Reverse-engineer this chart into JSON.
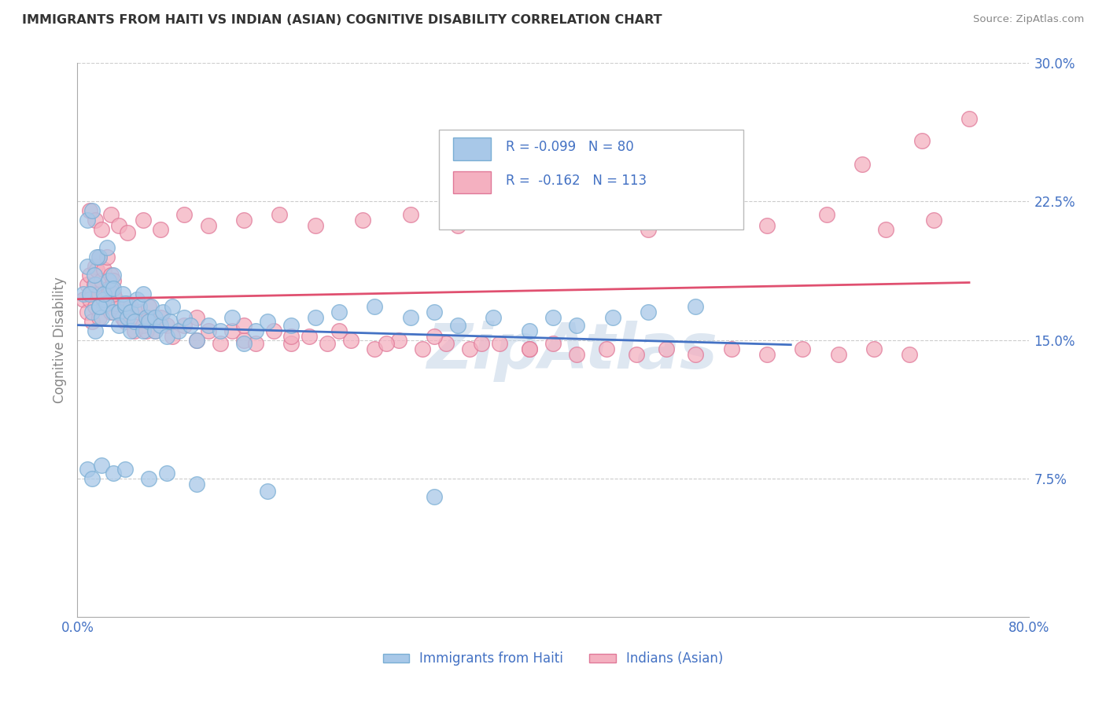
{
  "title": "IMMIGRANTS FROM HAITI VS INDIAN (ASIAN) COGNITIVE DISABILITY CORRELATION CHART",
  "source": "Source: ZipAtlas.com",
  "ylabel": "Cognitive Disability",
  "x_min": 0.0,
  "x_max": 0.8,
  "y_min": 0.0,
  "y_max": 0.3,
  "x_ticks": [
    0.0,
    0.1,
    0.2,
    0.3,
    0.4,
    0.5,
    0.6,
    0.7,
    0.8
  ],
  "y_ticks": [
    0.0,
    0.075,
    0.15,
    0.225,
    0.3
  ],
  "haiti_color": "#a8c8e8",
  "haiti_edge_color": "#7aaed4",
  "india_color": "#f4b0c0",
  "india_edge_color": "#e07898",
  "haiti_trend_color": "#4472c4",
  "india_trend_color": "#e05070",
  "legend_text_color": "#4472c4",
  "background_color": "#ffffff",
  "grid_color": "#cccccc",
  "title_color": "#333333",
  "axis_label_color": "#4472c4",
  "watermark_color": "#c8d8e8",
  "haiti_scatter_x": [
    0.005,
    0.008,
    0.012,
    0.015,
    0.018,
    0.008,
    0.012,
    0.015,
    0.018,
    0.022,
    0.01,
    0.014,
    0.016,
    0.02,
    0.024,
    0.028,
    0.018,
    0.022,
    0.026,
    0.03,
    0.025,
    0.03,
    0.035,
    0.03,
    0.035,
    0.04,
    0.038,
    0.042,
    0.04,
    0.045,
    0.045,
    0.05,
    0.048,
    0.052,
    0.055,
    0.058,
    0.055,
    0.06,
    0.062,
    0.065,
    0.065,
    0.07,
    0.072,
    0.075,
    0.078,
    0.08,
    0.085,
    0.09,
    0.095,
    0.1,
    0.11,
    0.12,
    0.13,
    0.14,
    0.15,
    0.16,
    0.18,
    0.2,
    0.22,
    0.25,
    0.28,
    0.3,
    0.32,
    0.35,
    0.38,
    0.4,
    0.42,
    0.45,
    0.48,
    0.52,
    0.008,
    0.012,
    0.02,
    0.03,
    0.04,
    0.06,
    0.075,
    0.1,
    0.16,
    0.3
  ],
  "haiti_scatter_y": [
    0.175,
    0.19,
    0.165,
    0.18,
    0.195,
    0.215,
    0.22,
    0.155,
    0.168,
    0.172,
    0.175,
    0.185,
    0.195,
    0.162,
    0.17,
    0.178,
    0.168,
    0.175,
    0.182,
    0.165,
    0.2,
    0.185,
    0.165,
    0.178,
    0.158,
    0.168,
    0.175,
    0.162,
    0.17,
    0.155,
    0.165,
    0.172,
    0.16,
    0.168,
    0.155,
    0.162,
    0.175,
    0.16,
    0.168,
    0.155,
    0.162,
    0.158,
    0.165,
    0.152,
    0.16,
    0.168,
    0.155,
    0.162,
    0.158,
    0.15,
    0.158,
    0.155,
    0.162,
    0.148,
    0.155,
    0.16,
    0.158,
    0.162,
    0.165,
    0.168,
    0.162,
    0.165,
    0.158,
    0.162,
    0.155,
    0.162,
    0.158,
    0.162,
    0.165,
    0.168,
    0.08,
    0.075,
    0.082,
    0.078,
    0.08,
    0.075,
    0.078,
    0.072,
    0.068,
    0.065
  ],
  "india_scatter_x": [
    0.005,
    0.008,
    0.01,
    0.012,
    0.015,
    0.008,
    0.01,
    0.014,
    0.016,
    0.018,
    0.012,
    0.015,
    0.018,
    0.02,
    0.022,
    0.025,
    0.018,
    0.022,
    0.026,
    0.028,
    0.022,
    0.026,
    0.03,
    0.028,
    0.032,
    0.036,
    0.03,
    0.034,
    0.038,
    0.032,
    0.038,
    0.042,
    0.04,
    0.045,
    0.042,
    0.048,
    0.05,
    0.055,
    0.052,
    0.058,
    0.06,
    0.065,
    0.07,
    0.075,
    0.08,
    0.09,
    0.1,
    0.11,
    0.12,
    0.13,
    0.14,
    0.15,
    0.165,
    0.18,
    0.195,
    0.21,
    0.23,
    0.25,
    0.27,
    0.29,
    0.31,
    0.33,
    0.355,
    0.38,
    0.4,
    0.42,
    0.445,
    0.47,
    0.495,
    0.52,
    0.55,
    0.58,
    0.61,
    0.64,
    0.67,
    0.7,
    0.01,
    0.015,
    0.02,
    0.028,
    0.035,
    0.042,
    0.055,
    0.07,
    0.09,
    0.11,
    0.14,
    0.17,
    0.2,
    0.24,
    0.28,
    0.32,
    0.37,
    0.43,
    0.48,
    0.53,
    0.58,
    0.63,
    0.68,
    0.72,
    0.75,
    0.71,
    0.66,
    0.03,
    0.06,
    0.1,
    0.14,
    0.18,
    0.22,
    0.26,
    0.3,
    0.34,
    0.38
  ],
  "india_scatter_y": [
    0.172,
    0.18,
    0.185,
    0.175,
    0.19,
    0.165,
    0.172,
    0.18,
    0.188,
    0.195,
    0.16,
    0.168,
    0.175,
    0.182,
    0.188,
    0.195,
    0.162,
    0.17,
    0.178,
    0.185,
    0.168,
    0.175,
    0.182,
    0.165,
    0.172,
    0.165,
    0.175,
    0.168,
    0.162,
    0.17,
    0.162,
    0.17,
    0.16,
    0.168,
    0.162,
    0.155,
    0.162,
    0.158,
    0.165,
    0.155,
    0.162,
    0.155,
    0.162,
    0.158,
    0.152,
    0.158,
    0.15,
    0.155,
    0.148,
    0.155,
    0.15,
    0.148,
    0.155,
    0.148,
    0.152,
    0.148,
    0.15,
    0.145,
    0.15,
    0.145,
    0.148,
    0.145,
    0.148,
    0.145,
    0.148,
    0.142,
    0.145,
    0.142,
    0.145,
    0.142,
    0.145,
    0.142,
    0.145,
    0.142,
    0.145,
    0.142,
    0.22,
    0.215,
    0.21,
    0.218,
    0.212,
    0.208,
    0.215,
    0.21,
    0.218,
    0.212,
    0.215,
    0.218,
    0.212,
    0.215,
    0.218,
    0.212,
    0.218,
    0.215,
    0.21,
    0.215,
    0.212,
    0.218,
    0.21,
    0.215,
    0.27,
    0.258,
    0.245,
    0.175,
    0.168,
    0.162,
    0.158,
    0.152,
    0.155,
    0.148,
    0.152,
    0.148,
    0.145
  ]
}
